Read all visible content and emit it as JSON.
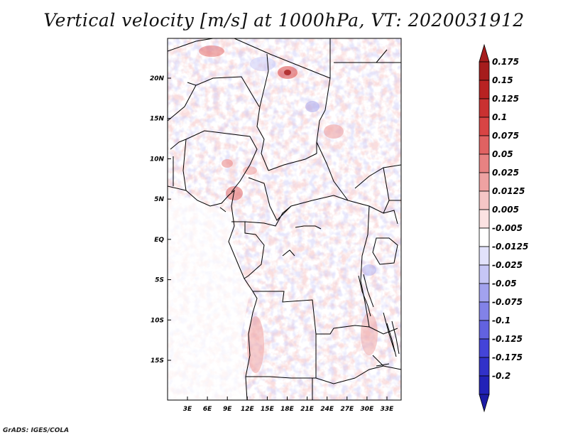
{
  "title": "Vertical velocity [m/s] at 1000hPa, VT: 2020031912",
  "footer": "GrADS: IGES/COLA",
  "map": {
    "lat_labels": [
      {
        "label": "20N",
        "lat": 20
      },
      {
        "label": "15N",
        "lat": 15
      },
      {
        "label": "10N",
        "lat": 10
      },
      {
        "label": "5N",
        "lat": 5
      },
      {
        "label": "EQ",
        "lat": 0
      },
      {
        "label": "5S",
        "lat": -5
      },
      {
        "label": "10S",
        "lat": -10
      },
      {
        "label": "15S",
        "lat": -15
      }
    ],
    "lon_labels": [
      {
        "label": "3E",
        "lon": 3
      },
      {
        "label": "6E",
        "lon": 6
      },
      {
        "label": "9E",
        "lon": 9
      },
      {
        "label": "12E",
        "lon": 12
      },
      {
        "label": "15E",
        "lon": 15
      },
      {
        "label": "18E",
        "lon": 18
      },
      {
        "label": "21E",
        "lon": 21
      },
      {
        "label": "24E",
        "lon": 24
      },
      {
        "label": "27E",
        "lon": 27
      },
      {
        "label": "30E",
        "lon": 30
      },
      {
        "label": "33E",
        "lon": 33
      }
    ]
  },
  "colorbar": {
    "levels": [
      {
        "label": "0.175",
        "color": "#a61c1c"
      },
      {
        "label": "0.15",
        "color": "#b82222"
      },
      {
        "label": "0.125",
        "color": "#c93131"
      },
      {
        "label": "0.1",
        "color": "#d84444"
      },
      {
        "label": "0.075",
        "color": "#e06262"
      },
      {
        "label": "0.05",
        "color": "#e78282"
      },
      {
        "label": "0.025",
        "color": "#eea2a2"
      },
      {
        "label": "0.0125",
        "color": "#f5c6c6"
      },
      {
        "label": "0.005",
        "color": "#fbe2e2"
      },
      {
        "label": "-0.005",
        "color": "#ffffff"
      },
      {
        "label": "-0.0125",
        "color": "#e2e2fb"
      },
      {
        "label": "-0.025",
        "color": "#c6c6f5"
      },
      {
        "label": "-0.05",
        "color": "#a2a2ee"
      },
      {
        "label": "-0.075",
        "color": "#8282e7"
      },
      {
        "label": "-0.1",
        "color": "#6262e0"
      },
      {
        "label": "-0.125",
        "color": "#4444d8"
      },
      {
        "label": "-0.175",
        "color": "#3131c9"
      },
      {
        "label": "-0.2",
        "color": "#2222b8"
      }
    ],
    "top_color": "#a61c1c",
    "bottom_color": "#1c1ca6"
  }
}
